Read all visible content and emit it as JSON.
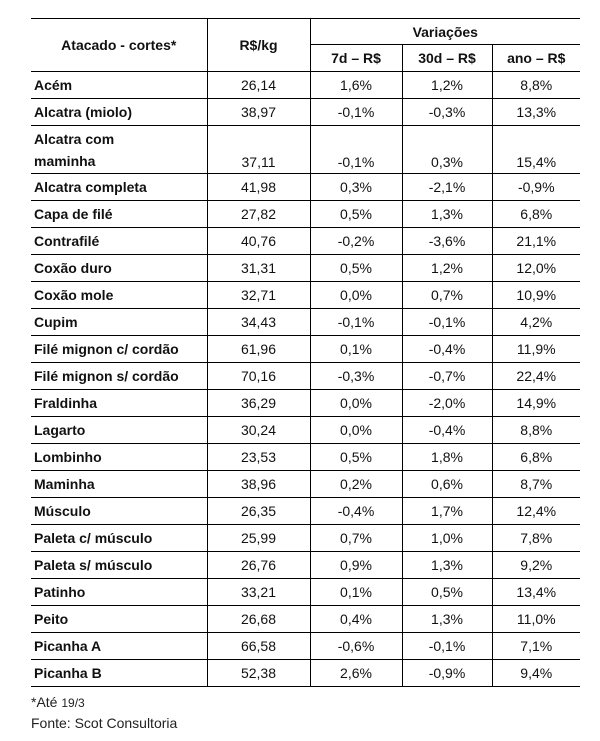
{
  "table": {
    "headers": {
      "col_cut": "Atacado - cortes*",
      "col_price": "R$/kg",
      "group_variations": "Variações",
      "col_7d": "7d – R$",
      "col_30d": "30d – R$",
      "col_year": "ano – R$"
    },
    "rows": [
      {
        "cut": "Acém",
        "price": "26,14",
        "d7": "1,6%",
        "d30": "1,2%",
        "year": "8,8%"
      },
      {
        "cut": "Alcatra (miolo)",
        "price": "38,97",
        "d7": "-0,1%",
        "d30": "-0,3%",
        "year": "13,3%"
      },
      {
        "cut": "Alcatra com maminha",
        "cut_line1": "Alcatra com",
        "cut_line2": "maminha",
        "price": "37,11",
        "d7": "-0,1%",
        "d30": "0,3%",
        "year": "15,4%"
      },
      {
        "cut": "Alcatra completa",
        "price": "41,98",
        "d7": "0,3%",
        "d30": "-2,1%",
        "year": "-0,9%"
      },
      {
        "cut": "Capa de filé",
        "price": "27,82",
        "d7": "0,5%",
        "d30": "1,3%",
        "year": "6,8%"
      },
      {
        "cut": "Contrafilé",
        "price": "40,76",
        "d7": "-0,2%",
        "d30": "-3,6%",
        "year": "21,1%"
      },
      {
        "cut": "Coxão duro",
        "price": "31,31",
        "d7": "0,5%",
        "d30": "1,2%",
        "year": "12,0%"
      },
      {
        "cut": "Coxão mole",
        "price": "32,71",
        "d7": "0,0%",
        "d30": "0,7%",
        "year": "10,9%"
      },
      {
        "cut": "Cupim",
        "price": "34,43",
        "d7": "-0,1%",
        "d30": "-0,1%",
        "year": "4,2%"
      },
      {
        "cut": "Filé mignon c/ cordão",
        "price": "61,96",
        "d7": "0,1%",
        "d30": "-0,4%",
        "year": "11,9%"
      },
      {
        "cut": "Filé mignon s/ cordão",
        "price": "70,16",
        "d7": "-0,3%",
        "d30": "-0,7%",
        "year": "22,4%"
      },
      {
        "cut": "Fraldinha",
        "price": "36,29",
        "d7": "0,0%",
        "d30": "-2,0%",
        "year": "14,9%"
      },
      {
        "cut": "Lagarto",
        "price": "30,24",
        "d7": "0,0%",
        "d30": "-0,4%",
        "year": "8,8%"
      },
      {
        "cut": "Lombinho",
        "price": "23,53",
        "d7": "0,5%",
        "d30": "1,8%",
        "year": "6,8%"
      },
      {
        "cut": "Maminha",
        "price": "38,96",
        "d7": "0,2%",
        "d30": "0,6%",
        "year": "8,7%"
      },
      {
        "cut": "Músculo",
        "price": "26,35",
        "d7": "-0,4%",
        "d30": "1,7%",
        "year": "12,4%"
      },
      {
        "cut": "Paleta c/ músculo",
        "price": "25,99",
        "d7": "0,7%",
        "d30": "1,0%",
        "year": "7,8%"
      },
      {
        "cut": "Paleta s/ músculo",
        "price": "26,76",
        "d7": "0,9%",
        "d30": "1,3%",
        "year": "9,2%"
      },
      {
        "cut": "Patinho",
        "price": "33,21",
        "d7": "0,1%",
        "d30": "0,5%",
        "year": "13,4%"
      },
      {
        "cut": "Peito",
        "price": "26,68",
        "d7": "0,4%",
        "d30": "1,3%",
        "year": "11,0%"
      },
      {
        "cut": "Picanha A",
        "price": "66,58",
        "d7": "-0,6%",
        "d30": "-0,1%",
        "year": "7,1%"
      },
      {
        "cut": "Picanha B",
        "price": "52,38",
        "d7": "2,6%",
        "d30": "-0,9%",
        "year": "9,4%"
      }
    ]
  },
  "footer": {
    "note_prefix": "*Até",
    "note_date": "19/3",
    "source": "Fonte: Scot Consultoria"
  }
}
